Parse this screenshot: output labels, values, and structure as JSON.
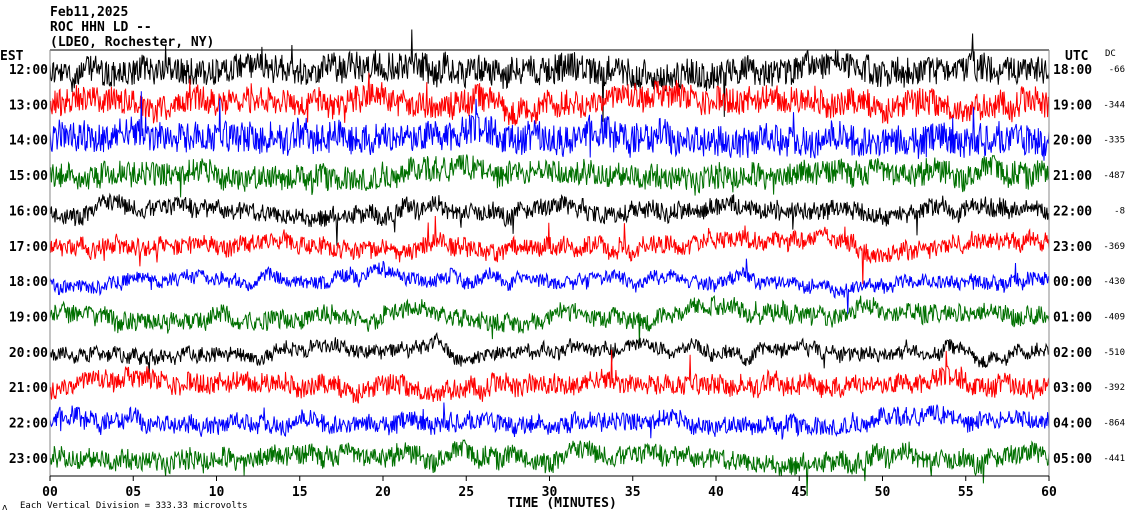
{
  "chart_data": {
    "type": "line",
    "title_lines": [
      "Feb11,2025",
      "ROC HHN LD --",
      "(LDEO, Rochester, NY)"
    ],
    "left_axis_title": "EST",
    "right_axis_title": "UTC",
    "dc_title": "DC",
    "xlabel": "TIME (MINUTES)",
    "xlim": [
      0,
      60
    ],
    "x_ticks": [
      "00",
      "05",
      "10",
      "15",
      "20",
      "25",
      "30",
      "35",
      "40",
      "45",
      "50",
      "55",
      "60"
    ],
    "footer": "Each Vertical Division =  333.33 microvolts",
    "footer_mark": "ʌ",
    "colors": [
      "#000000",
      "#ff0000",
      "#0000ff",
      "#007000"
    ],
    "rows": [
      {
        "est": "12:00",
        "utc": "18:00",
        "dc": "-66",
        "amp": 1.3
      },
      {
        "est": "13:00",
        "utc": "19:00",
        "dc": "-344",
        "amp": 1.2
      },
      {
        "est": "14:00",
        "utc": "20:00",
        "dc": "-335",
        "amp": 1.4
      },
      {
        "est": "15:00",
        "utc": "21:00",
        "dc": "-487",
        "amp": 1.1
      },
      {
        "est": "16:00",
        "utc": "22:00",
        "dc": "-8",
        "amp": 0.8
      },
      {
        "est": "17:00",
        "utc": "23:00",
        "dc": "-369",
        "amp": 0.8
      },
      {
        "est": "18:00",
        "utc": "00:00",
        "dc": "-430",
        "amp": 0.6
      },
      {
        "est": "19:00",
        "utc": "01:00",
        "dc": "-409",
        "amp": 0.8
      },
      {
        "est": "20:00",
        "utc": "02:00",
        "dc": "-510",
        "amp": 0.6
      },
      {
        "est": "21:00",
        "utc": "03:00",
        "dc": "-392",
        "amp": 0.9
      },
      {
        "est": "22:00",
        "utc": "04:00",
        "dc": "-864",
        "amp": 0.8
      },
      {
        "est": "23:00",
        "utc": "05:00",
        "dc": "-441",
        "amp": 0.9
      }
    ]
  }
}
